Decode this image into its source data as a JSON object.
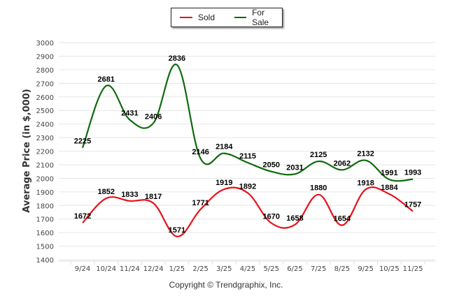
{
  "chart_data": {
    "type": "line",
    "title": "",
    "xlabel": "",
    "ylabel": "Average Price (in $,000)",
    "ylim": [
      1400,
      3000
    ],
    "yticks": [
      1400,
      1500,
      1600,
      1700,
      1800,
      1900,
      2000,
      2100,
      2200,
      2300,
      2400,
      2500,
      2600,
      2700,
      2800,
      2900,
      3000
    ],
    "grid": true,
    "legend_position": "top-center",
    "categories": [
      "9/24",
      "10/24",
      "11/24",
      "12/24",
      "1/25",
      "2/25",
      "3/25",
      "4/25",
      "5/25",
      "6/25",
      "7/25",
      "8/25",
      "9/25",
      "10/25",
      "11/25"
    ],
    "series": [
      {
        "name": "Sold",
        "color": "#e8101a",
        "values": [
          1672,
          1852,
          1833,
          1817,
          1571,
          1771,
          1919,
          1892,
          1670,
          1658,
          1880,
          1654,
          1918,
          1884,
          1757
        ]
      },
      {
        "name": "For Sale",
        "color": "#0e6a0e",
        "values": [
          2225,
          2681,
          2431,
          2406,
          2836,
          2146,
          2184,
          2115,
          2050,
          2031,
          2125,
          2062,
          2132,
          1991,
          1993
        ]
      }
    ]
  },
  "legend": {
    "items": [
      {
        "label": "Sold",
        "color": "#e8101a"
      },
      {
        "label": "For Sale",
        "color": "#0e6a0e"
      }
    ]
  },
  "footer": {
    "copyright": "Copyright © Trendgraphix, Inc."
  }
}
